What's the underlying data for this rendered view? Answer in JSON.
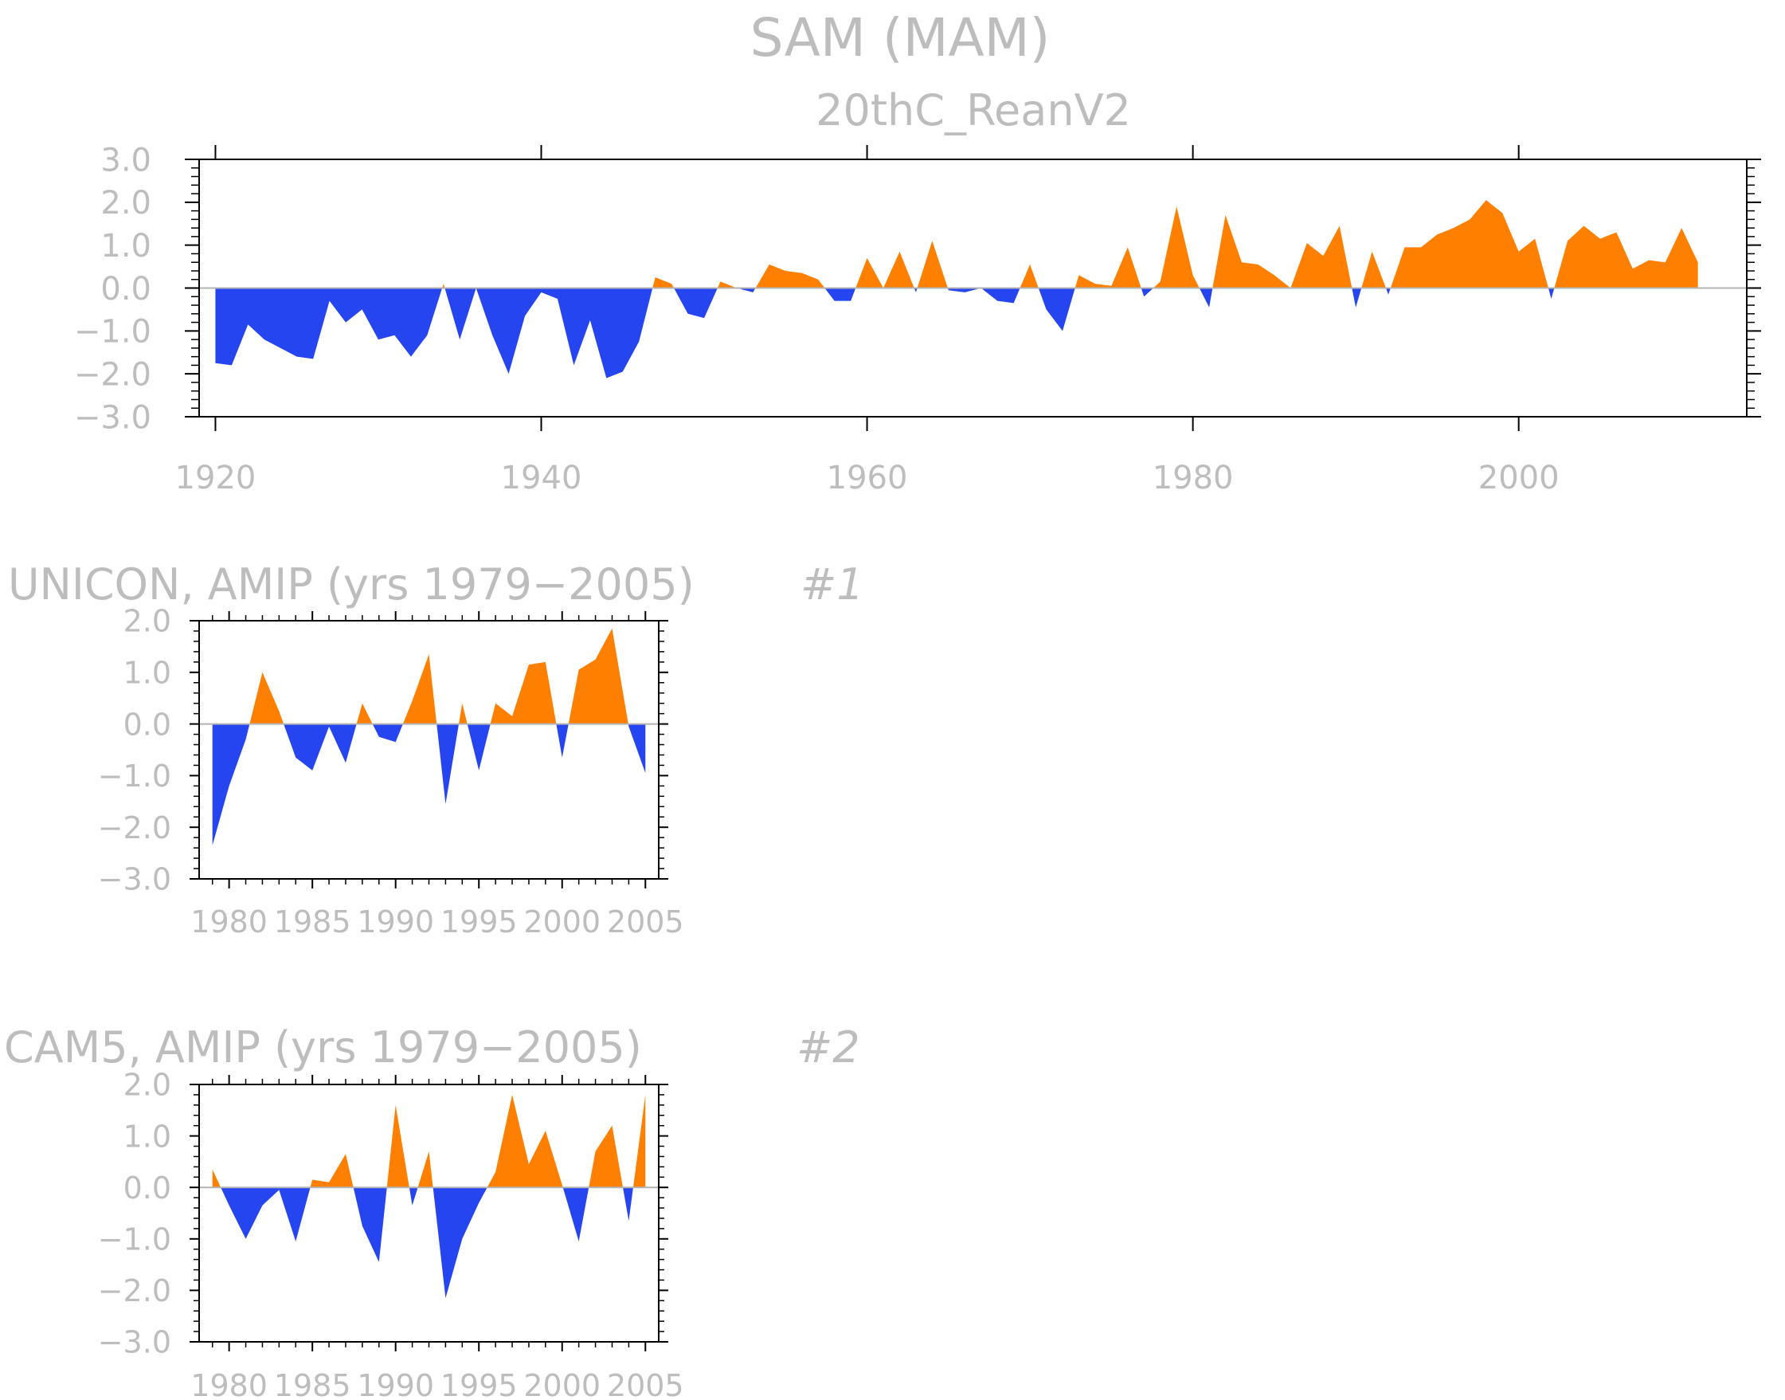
{
  "figure": {
    "title": "SAM (MAM)"
  },
  "colors": {
    "positive": "#ff8000",
    "negative": "#2545f0",
    "axis": "#000000",
    "zero_line": "#b4b4b4",
    "text": "#bdbdbd"
  },
  "chart_data": [
    {
      "type": "area",
      "title": "20thC_ReanV2",
      "xlabel": "",
      "ylabel": "",
      "xlim": [
        1919,
        2014
      ],
      "ylim": [
        -3.0,
        3.0
      ],
      "x_ticks": [
        "1920",
        "1940",
        "1960",
        "1980",
        "2000"
      ],
      "y_ticks": [
        "3.0",
        "2.0",
        "1.0",
        "0.0",
        "−1.0",
        "−2.0",
        "−3.0"
      ],
      "grid": false,
      "x": [
        1920,
        1921,
        1922,
        1923,
        1924,
        1925,
        1926,
        1927,
        1928,
        1929,
        1930,
        1931,
        1932,
        1933,
        1934,
        1935,
        1936,
        1937,
        1938,
        1939,
        1940,
        1941,
        1942,
        1943,
        1944,
        1945,
        1946,
        1947,
        1948,
        1949,
        1950,
        1951,
        1952,
        1953,
        1954,
        1955,
        1956,
        1957,
        1958,
        1959,
        1960,
        1961,
        1962,
        1963,
        1964,
        1965,
        1966,
        1967,
        1968,
        1969,
        1970,
        1971,
        1972,
        1973,
        1974,
        1975,
        1976,
        1977,
        1978,
        1979,
        1980,
        1981,
        1982,
        1983,
        1984,
        1985,
        1986,
        1987,
        1988,
        1989,
        1990,
        1991,
        1992,
        1993,
        1994,
        1995,
        1996,
        1997,
        1998,
        1999,
        2000,
        2001,
        2002,
        2003,
        2004,
        2005,
        2006,
        2007,
        2008,
        2009,
        2010,
        2011
      ],
      "values": [
        -1.75,
        -1.8,
        -0.85,
        -1.2,
        -1.4,
        -1.6,
        -1.65,
        -0.3,
        -0.8,
        -0.5,
        -1.2,
        -1.1,
        -1.6,
        -1.1,
        0.1,
        -1.2,
        0.0,
        -1.1,
        -2.0,
        -0.65,
        -0.1,
        -0.25,
        -1.8,
        -0.75,
        -2.1,
        -1.95,
        -1.25,
        0.25,
        0.1,
        -0.6,
        -0.7,
        0.15,
        0.0,
        -0.1,
        0.55,
        0.4,
        0.35,
        0.2,
        -0.3,
        -0.3,
        0.7,
        0.0,
        0.85,
        -0.1,
        1.1,
        -0.05,
        -0.1,
        0.0,
        -0.3,
        -0.35,
        0.55,
        -0.5,
        -1.0,
        0.3,
        0.1,
        0.05,
        0.95,
        -0.2,
        0.15,
        1.9,
        0.3,
        -0.45,
        1.7,
        0.6,
        0.55,
        0.3,
        0.0,
        1.05,
        0.75,
        1.45,
        -0.45,
        0.85,
        -0.15,
        0.95,
        0.95,
        1.25,
        1.4,
        1.6,
        2.05,
        1.75,
        0.85,
        1.15,
        -0.25,
        1.1,
        1.45,
        1.15,
        1.3,
        0.45,
        0.65,
        0.6,
        1.4,
        0.6
      ]
    },
    {
      "type": "area",
      "title": "UNICON, AMIP (yrs 1979−2005)",
      "panel_label": "#1",
      "xlabel": "",
      "ylabel": "",
      "xlim": [
        1978.2,
        2005.8
      ],
      "ylim": [
        -3.0,
        2.0
      ],
      "x_ticks": [
        "1980",
        "1985",
        "1990",
        "1995",
        "2000",
        "2005"
      ],
      "y_ticks": [
        "2.0",
        "1.0",
        "0.0",
        "−1.0",
        "−2.0",
        "−3.0"
      ],
      "grid": false,
      "x": [
        1979,
        1980,
        1981,
        1982,
        1983,
        1984,
        1985,
        1986,
        1987,
        1988,
        1989,
        1990,
        1991,
        1992,
        1993,
        1994,
        1995,
        1996,
        1997,
        1998,
        1999,
        2000,
        2001,
        2002,
        2003,
        2004,
        2005
      ],
      "values": [
        -2.35,
        -1.2,
        -0.3,
        1.0,
        0.25,
        -0.65,
        -0.9,
        -0.05,
        -0.75,
        0.4,
        -0.25,
        -0.35,
        0.45,
        1.35,
        -1.55,
        0.4,
        -0.9,
        0.4,
        0.15,
        1.15,
        1.2,
        -0.65,
        1.05,
        1.25,
        1.85,
        -0.05,
        -0.95
      ]
    },
    {
      "type": "area",
      "title": "CAM5, AMIP (yrs 1979−2005)",
      "panel_label": "#2",
      "xlabel": "",
      "ylabel": "",
      "xlim": [
        1978.2,
        2005.8
      ],
      "ylim": [
        -3.0,
        2.0
      ],
      "x_ticks": [
        "1980",
        "1985",
        "1990",
        "1995",
        "2000",
        "2005"
      ],
      "y_ticks": [
        "2.0",
        "1.0",
        "0.0",
        "−1.0",
        "−2.0",
        "−3.0"
      ],
      "grid": false,
      "x": [
        1979,
        1980,
        1981,
        1982,
        1983,
        1984,
        1985,
        1986,
        1987,
        1988,
        1989,
        1990,
        1991,
        1992,
        1993,
        1994,
        1995,
        1996,
        1997,
        1998,
        1999,
        2000,
        2001,
        2002,
        2003,
        2004,
        2005
      ],
      "values": [
        0.35,
        -0.35,
        -1.0,
        -0.35,
        -0.05,
        -1.05,
        0.15,
        0.1,
        0.65,
        -0.75,
        -1.45,
        1.6,
        -0.35,
        0.7,
        -2.15,
        -1.0,
        -0.3,
        0.3,
        1.8,
        0.45,
        1.1,
        0.05,
        -1.05,
        0.7,
        1.2,
        -0.65,
        1.8
      ]
    }
  ]
}
